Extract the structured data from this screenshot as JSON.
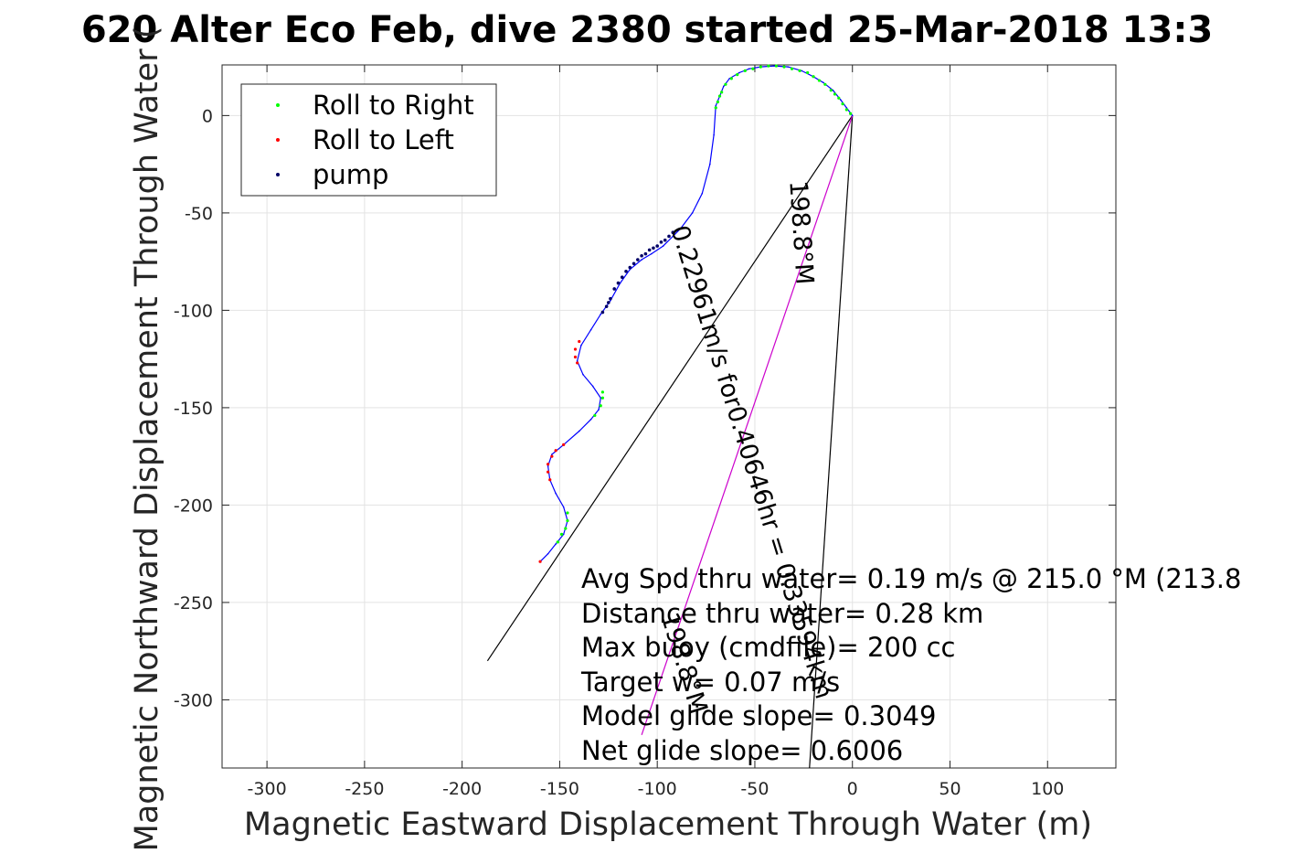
{
  "chart_data": {
    "type": "scatter",
    "title": "620 Alter Eco Feb, dive 2380 started 25-Mar-2018 13:3",
    "xlabel": "Magnetic Eastward Displacement Through Water (m)",
    "ylabel": "Magnetic Northward Displacement Through Water (",
    "xlim": [
      -323,
      135
    ],
    "ylim": [
      -335,
      26
    ],
    "xticks": [
      -300,
      -250,
      -200,
      -150,
      -100,
      -50,
      0,
      50,
      100
    ],
    "yticks": [
      0,
      -50,
      -100,
      -150,
      -200,
      -250,
      -300
    ],
    "grid": true,
    "legend": {
      "placement": "top-left",
      "entries": [
        {
          "label": "Roll to Right",
          "color": "#00ff00"
        },
        {
          "label": "Roll to Left",
          "color": "#ff0000"
        },
        {
          "label": "pump",
          "color": "#000066"
        }
      ]
    },
    "track": [
      [
        0,
        0
      ],
      [
        -3,
        4
      ],
      [
        -6,
        8
      ],
      [
        -10,
        13
      ],
      [
        -15,
        17
      ],
      [
        -20,
        20
      ],
      [
        -26,
        23
      ],
      [
        -33,
        25
      ],
      [
        -40,
        25.5
      ],
      [
        -47,
        25
      ],
      [
        -53,
        24
      ],
      [
        -58,
        22
      ],
      [
        -63,
        19
      ],
      [
        -66,
        15
      ],
      [
        -68,
        10
      ],
      [
        -70,
        5
      ],
      [
        -71,
        -10
      ],
      [
        -73,
        -25
      ],
      [
        -77,
        -40
      ],
      [
        -82,
        -50
      ],
      [
        -88,
        -58
      ],
      [
        -92,
        -62
      ],
      [
        -97,
        -67
      ],
      [
        -103,
        -71
      ],
      [
        -108,
        -74
      ],
      [
        -114,
        -79
      ],
      [
        -119,
        -86
      ],
      [
        -124,
        -95
      ],
      [
        -129,
        -102
      ],
      [
        -134,
        -110
      ],
      [
        -139,
        -118
      ],
      [
        -141,
        -126
      ],
      [
        -138,
        -133
      ],
      [
        -133,
        -139
      ],
      [
        -129,
        -145
      ],
      [
        -130,
        -151
      ],
      [
        -134,
        -156
      ],
      [
        -140,
        -162
      ],
      [
        -148,
        -169
      ],
      [
        -154,
        -174
      ],
      [
        -156,
        -180
      ],
      [
        -155,
        -187
      ],
      [
        -152,
        -194
      ],
      [
        -148,
        -201
      ],
      [
        -146,
        -208
      ],
      [
        -148,
        -215
      ],
      [
        -152,
        -220
      ],
      [
        -156,
        -225
      ],
      [
        -160,
        -229
      ]
    ],
    "roll_right": [
      [
        -1,
        1
      ],
      [
        -3,
        3
      ],
      [
        -5,
        6
      ],
      [
        -7,
        9
      ],
      [
        -9,
        11
      ],
      [
        -11,
        13
      ],
      [
        -14,
        16
      ],
      [
        -17,
        18
      ],
      [
        -20,
        20
      ],
      [
        -23,
        22
      ],
      [
        -27,
        23
      ],
      [
        -31,
        24
      ],
      [
        -35,
        25
      ],
      [
        -39,
        25.5
      ],
      [
        -43,
        25.5
      ],
      [
        -47,
        25
      ],
      [
        -51,
        24
      ],
      [
        -55,
        23
      ],
      [
        -59,
        21
      ],
      [
        -62,
        19
      ],
      [
        -65,
        16
      ],
      [
        -67,
        12
      ],
      [
        -68,
        10
      ],
      [
        -69,
        7
      ],
      [
        -70,
        4
      ],
      [
        -128,
        -142
      ],
      [
        -128,
        -145
      ],
      [
        -129,
        -149
      ],
      [
        -132,
        -154
      ],
      [
        -146,
        -204
      ],
      [
        -146,
        -208
      ],
      [
        -147,
        -212
      ],
      [
        -149,
        -215
      ],
      [
        -151,
        -219
      ]
    ],
    "roll_left": [
      [
        -140,
        -116
      ],
      [
        -142,
        -120
      ],
      [
        -142,
        -124
      ],
      [
        -141,
        -127
      ],
      [
        -148,
        -169
      ],
      [
        -152,
        -172
      ],
      [
        -154,
        -175
      ],
      [
        -156,
        -179
      ],
      [
        -156,
        -183
      ],
      [
        -155,
        -187
      ],
      [
        -160,
        -229
      ]
    ],
    "pump": [
      [
        -92,
        -60
      ],
      [
        -94,
        -62
      ],
      [
        -96,
        -64
      ],
      [
        -98,
        -65
      ],
      [
        -100,
        -67
      ],
      [
        -102,
        -68
      ],
      [
        -104,
        -69
      ],
      [
        -106,
        -71
      ],
      [
        -108,
        -72
      ],
      [
        -110,
        -74
      ],
      [
        -112,
        -76
      ],
      [
        -114,
        -78
      ],
      [
        -116,
        -80
      ],
      [
        -118,
        -83
      ],
      [
        -120,
        -86
      ],
      [
        -122,
        -89
      ],
      [
        -124,
        -94
      ],
      [
        -125,
        -96
      ],
      [
        -126,
        -98
      ],
      [
        -128,
        -101
      ]
    ],
    "lines": [
      {
        "name": "heading-line-1",
        "from": [
          0,
          0
        ],
        "to": [
          -187,
          -280
        ],
        "color": "#000000"
      },
      {
        "name": "heading-line-2",
        "from": [
          0,
          0
        ],
        "to": [
          -22,
          -335
        ],
        "color": "#000000"
      },
      {
        "name": "heading-line-3",
        "from": [
          0,
          0
        ],
        "to": [
          -108,
          -318
        ],
        "color": "#cc00cc"
      }
    ],
    "rotated_labels": [
      {
        "name": "speed-label",
        "text": "0.22961m/s for0.40646hr = 0.33594km"
      },
      {
        "name": "heading-label-1",
        "text": "198.8°M"
      },
      {
        "name": "heading-label-2",
        "text": "198.8°M"
      }
    ],
    "annotations": [
      "Avg Spd thru water=  0.19 m/s @ 215.0 °M (213.8",
      "Distance thru water=  0.28 km",
      "Max buoy (cmdfile)= 200 cc",
      "Target w= 0.07 m/s",
      "Model glide slope= 0.3049",
      "Net glide slope= 0.6006"
    ],
    "colors": {
      "track": "#0000ff",
      "roll_right": "#00ff00",
      "roll_left": "#ff0000",
      "pump": "#000066",
      "heading_line": "#000000",
      "net_line": "#cc00cc"
    }
  }
}
